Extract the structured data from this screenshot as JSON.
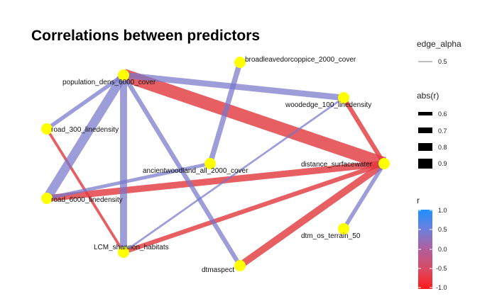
{
  "title": "Correlations between predictors",
  "nodes": [
    {
      "id": "population_dens_6000_cover",
      "label": "population_dens_6000_cover"
    },
    {
      "id": "broadleavedorcoppice_2000_cover",
      "label": "broadleavedorcoppice_2000_cover"
    },
    {
      "id": "woodedge_100_linedensity",
      "label": "woodedge_100_linedensity"
    },
    {
      "id": "road_300_linedensity",
      "label": "road_300_linedensity"
    },
    {
      "id": "distance_surfacewater",
      "label": "distance_surfacewater"
    },
    {
      "id": "ancientwoodland_all_2000_cover",
      "label": "ancientwoodland_all_2000_cover"
    },
    {
      "id": "road_6000_linedensity",
      "label": "road_6000_linedensity"
    },
    {
      "id": "dtm_os_terrain_50",
      "label": "dtm_os_terrain_50"
    },
    {
      "id": "LCM_shannon_habitats",
      "label": "LCM_shannon_habitats"
    },
    {
      "id": "dtmaspect",
      "label": "dtmaspect"
    }
  ],
  "edges": [
    {
      "from": "population_dens_6000_cover",
      "to": "distance_surfacewater",
      "r": -0.95
    },
    {
      "from": "road_6000_linedensity",
      "to": "distance_surfacewater",
      "r": -0.7
    },
    {
      "from": "dtmaspect",
      "to": "distance_surfacewater",
      "r": -0.72
    },
    {
      "from": "LCM_shannon_habitats",
      "to": "distance_surfacewater",
      "r": -0.62
    },
    {
      "from": "woodedge_100_linedensity",
      "to": "distance_surfacewater",
      "r": -0.62
    },
    {
      "from": "road_300_linedensity",
      "to": "LCM_shannon_habitats",
      "r": -0.55
    },
    {
      "from": "population_dens_6000_cover",
      "to": "road_6000_linedensity",
      "r": 0.8
    },
    {
      "from": "population_dens_6000_cover",
      "to": "LCM_shannon_habitats",
      "r": 0.72
    },
    {
      "from": "population_dens_6000_cover",
      "to": "woodedge_100_linedensity",
      "r": 0.68
    },
    {
      "from": "population_dens_6000_cover",
      "to": "dtmaspect",
      "r": 0.62
    },
    {
      "from": "population_dens_6000_cover",
      "to": "road_300_linedensity",
      "r": 0.6
    },
    {
      "from": "broadleavedorcoppice_2000_cover",
      "to": "ancientwoodland_all_2000_cover",
      "r": 0.65
    },
    {
      "from": "road_6000_linedensity",
      "to": "ancientwoodland_all_2000_cover",
      "r": 0.58
    },
    {
      "from": "woodedge_100_linedensity",
      "to": "LCM_shannon_habitats",
      "r": 0.52
    },
    {
      "from": "distance_surfacewater",
      "to": "dtm_os_terrain_50",
      "r": 0.6
    }
  ],
  "legend": {
    "edge_alpha": {
      "title": "edge_alpha",
      "value": "0.5"
    },
    "abs_r": {
      "title": "abs(r)",
      "values": [
        "0.6",
        "0.7",
        "0.8",
        "0.9"
      ]
    },
    "r": {
      "title": "r",
      "ticks": [
        "1.0",
        "0.5",
        "0.0",
        "-0.5",
        "-1.0"
      ]
    }
  },
  "colors": {
    "positive": "#7777cc",
    "negative": "#e23b41",
    "node": "#ffff00",
    "colorbar_top": "#1e90ff",
    "colorbar_mid": "#bb55aa",
    "colorbar_bottom": "#ff1a1a"
  }
}
